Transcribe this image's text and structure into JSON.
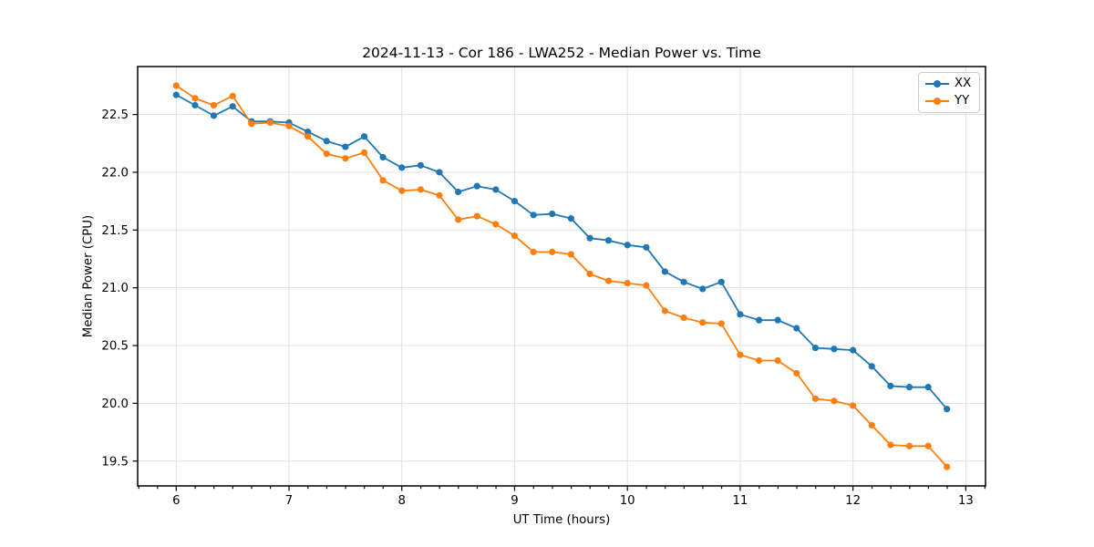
{
  "chart_data": {
    "type": "line",
    "title": "2024-11-13 - Cor 186 - LWA252 - Median Power vs. Time",
    "xlabel": "UT Time (hours)",
    "ylabel": "Median Power (CPU)",
    "xlim": [
      5.658,
      13.175
    ],
    "ylim": [
      19.285,
      22.915
    ],
    "xticks": [
      6,
      7,
      8,
      9,
      10,
      11,
      12,
      13
    ],
    "yticks": [
      19.5,
      20.0,
      20.5,
      21.0,
      21.5,
      22.0,
      22.5
    ],
    "x_minor_step": 0.1667,
    "grid": true,
    "grid_color": "#e0e0e0",
    "legend_position": "upper right",
    "x": [
      6.0,
      6.167,
      6.333,
      6.5,
      6.667,
      6.833,
      7.0,
      7.167,
      7.333,
      7.5,
      7.667,
      7.833,
      8.0,
      8.167,
      8.333,
      8.5,
      8.667,
      8.833,
      9.0,
      9.167,
      9.333,
      9.5,
      9.667,
      9.833,
      10.0,
      10.167,
      10.333,
      10.5,
      10.667,
      10.833,
      11.0,
      11.167,
      11.333,
      11.5,
      11.667,
      11.833,
      12.0,
      12.167,
      12.333,
      12.5,
      12.667,
      12.833
    ],
    "series": [
      {
        "name": "XX",
        "color": "#1f77b4",
        "values": [
          22.67,
          22.58,
          22.49,
          22.57,
          22.44,
          22.44,
          22.43,
          22.35,
          22.27,
          22.22,
          22.31,
          22.13,
          22.04,
          22.06,
          22.0,
          21.83,
          21.88,
          21.85,
          21.75,
          21.63,
          21.64,
          21.6,
          21.43,
          21.41,
          21.37,
          21.35,
          21.14,
          21.05,
          20.99,
          21.05,
          20.77,
          20.72,
          20.72,
          20.65,
          20.48,
          20.47,
          20.46,
          20.32,
          20.15,
          20.14,
          20.14,
          19.95
        ]
      },
      {
        "name": "YY",
        "color": "#ff7f0e",
        "values": [
          22.75,
          22.64,
          22.58,
          22.66,
          22.42,
          22.43,
          22.4,
          22.31,
          22.16,
          22.12,
          22.17,
          21.93,
          21.84,
          21.85,
          21.8,
          21.59,
          21.62,
          21.55,
          21.45,
          21.31,
          21.31,
          21.29,
          21.12,
          21.06,
          21.04,
          21.02,
          20.8,
          20.74,
          20.7,
          20.69,
          20.42,
          20.37,
          20.37,
          20.26,
          20.04,
          20.02,
          19.98,
          19.81,
          19.64,
          19.63,
          19.63,
          19.45
        ]
      }
    ]
  }
}
